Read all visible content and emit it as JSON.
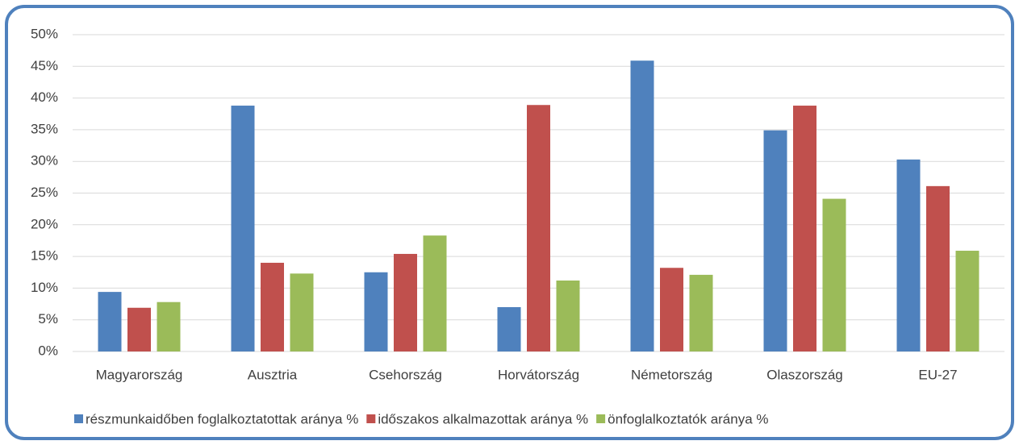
{
  "chart_data": {
    "type": "bar",
    "categories": [
      "Magyarország",
      "Ausztria",
      "Csehország",
      "Horvátország",
      "Németország",
      "Olaszország",
      "EU-27"
    ],
    "series": [
      {
        "name": "részmunkaidőben foglalkoztatottak aránya %",
        "color": "#4f81bd",
        "values": [
          9.4,
          38.8,
          12.5,
          7.0,
          45.9,
          34.9,
          30.3
        ]
      },
      {
        "name": "időszakos alkalmazottak aránya %",
        "color": "#c0504d",
        "values": [
          6.9,
          14.0,
          15.4,
          38.9,
          13.2,
          38.8,
          26.1
        ]
      },
      {
        "name": "önfoglalkoztatók aránya %",
        "color": "#9bbb59",
        "values": [
          7.8,
          12.3,
          18.3,
          11.2,
          12.1,
          24.1,
          15.9
        ]
      }
    ],
    "ylim": [
      0,
      50
    ],
    "yticks": [
      {
        "value": 0,
        "label": "0%"
      },
      {
        "value": 5,
        "label": "5%"
      },
      {
        "value": 10,
        "label": "10%"
      },
      {
        "value": 15,
        "label": "15%"
      },
      {
        "value": 20,
        "label": "20%"
      },
      {
        "value": 25,
        "label": "25%"
      },
      {
        "value": 30,
        "label": "30%"
      },
      {
        "value": 35,
        "label": "35%"
      },
      {
        "value": 40,
        "label": "40%"
      },
      {
        "value": 45,
        "label": "45%"
      },
      {
        "value": 50,
        "label": "50%"
      }
    ],
    "grid": true,
    "legend": "bottom"
  }
}
